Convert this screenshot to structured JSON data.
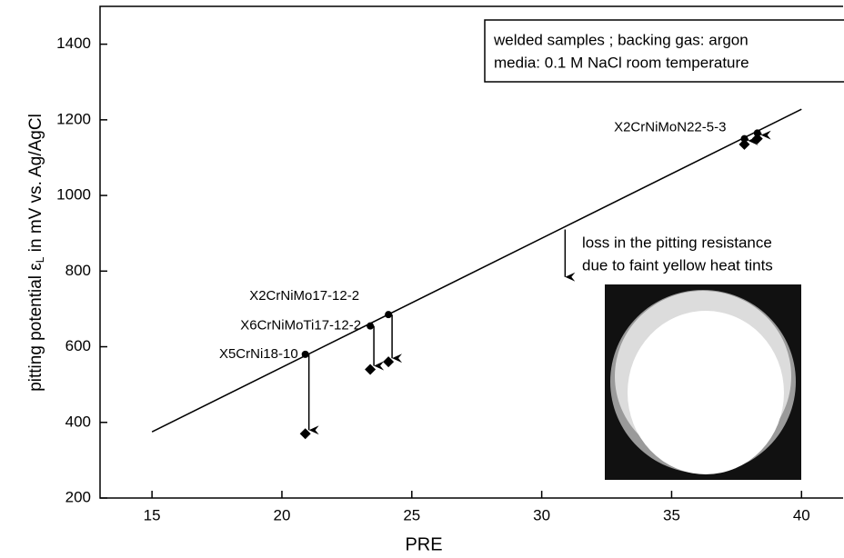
{
  "chart_data": {
    "type": "scatter",
    "x_label": "PRE",
    "y_label": [
      "pitting potential ε",
      "L",
      " in mV vs. Ag/AgCl"
    ],
    "xlim": [
      13,
      41.6
    ],
    "xticks": [
      15,
      20,
      25,
      30,
      35,
      40
    ],
    "ylim": [
      200,
      1500
    ],
    "yticks": [
      200,
      400,
      600,
      800,
      1000,
      1200,
      1400
    ],
    "fit": {
      "x": [
        15,
        40
      ],
      "values": [
        375,
        1228
      ]
    },
    "samples": [
      {
        "label": "X5CrNi18-10",
        "x": [
          20.9
        ],
        "base": [
          580
        ],
        "welded": [
          370
        ]
      },
      {
        "label": "X6CrNiMoTi17-12-2",
        "x": [
          23.4
        ],
        "base": [
          655
        ],
        "welded": [
          540
        ]
      },
      {
        "label": "X2CrNiMo17-12-2",
        "x": [
          24.1
        ],
        "base": [
          685
        ],
        "welded": [
          560
        ]
      },
      {
        "label": "X2CrNiMoN22-5-3",
        "x": [
          37.8,
          38.3
        ],
        "base": [
          1150,
          1165
        ],
        "welded": [
          1135,
          1150
        ]
      }
    ],
    "info_box": [
      "welded samples ; backing gas: argon",
      "media: 0.1 M NaCl room temperature"
    ],
    "annotation": {
      "lines": [
        "loss in the pitting resistance",
        "due to faint yellow heat tints"
      ],
      "x": 30.9,
      "from": 910,
      "to": 775
    }
  }
}
